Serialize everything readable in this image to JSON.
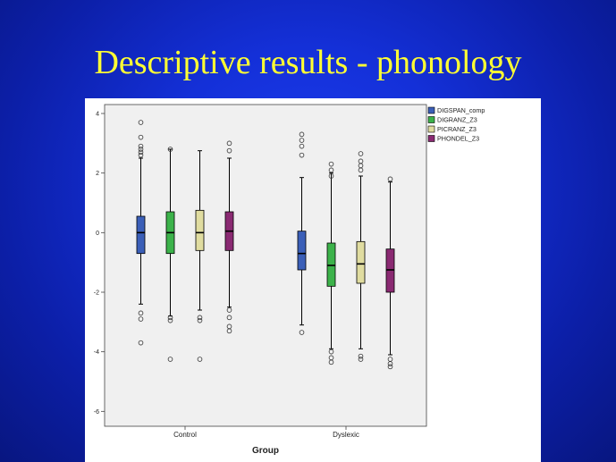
{
  "slide": {
    "title": "Descriptive results - phonology"
  },
  "chart_data": {
    "type": "boxplot",
    "title": "",
    "xlabel": "Group",
    "ylabel": "",
    "categories": [
      "Control",
      "Dyslexic"
    ],
    "ylim": [
      -6.5,
      4.3
    ],
    "yticks": [
      -6,
      -4,
      -2,
      0,
      2,
      4
    ],
    "grid": false,
    "legend_position": "top-right",
    "series": [
      {
        "name": "DIGSPAN_comp",
        "color": "#3b5fb8",
        "boxes": [
          {
            "whisker_low": -2.4,
            "q1": -0.7,
            "median": 0.0,
            "q3": 0.55,
            "whisker_high": 2.5,
            "outliers": [
              3.7,
              3.2,
              2.9,
              2.8,
              2.7,
              2.6,
              -2.7,
              -2.9,
              -3.7
            ]
          },
          {
            "whisker_low": -3.1,
            "q1": -1.25,
            "median": -0.7,
            "q3": 0.05,
            "whisker_high": 1.85,
            "outliers": [
              3.3,
              3.1,
              2.9,
              2.6,
              -3.35
            ]
          }
        ]
      },
      {
        "name": "DIGRANZ_Z3",
        "color": "#3cb24a",
        "boxes": [
          {
            "whisker_low": -2.8,
            "q1": -0.7,
            "median": 0.0,
            "q3": 0.7,
            "whisker_high": 2.8,
            "outliers": [
              2.8,
              -2.85,
              -2.95,
              -4.25
            ]
          },
          {
            "whisker_low": -3.9,
            "q1": -1.8,
            "median": -1.1,
            "q3": -0.35,
            "whisker_high": 2.0,
            "outliers": [
              2.3,
              2.1,
              1.9,
              -4.0,
              -4.2,
              -4.35
            ]
          }
        ]
      },
      {
        "name": "PICRANZ_Z3",
        "color": "#e0dca0",
        "boxes": [
          {
            "whisker_low": -2.6,
            "q1": -0.6,
            "median": 0.0,
            "q3": 0.75,
            "whisker_high": 2.75,
            "outliers": [
              -2.85,
              -2.95,
              -4.25
            ]
          },
          {
            "whisker_low": -3.9,
            "q1": -1.7,
            "median": -1.05,
            "q3": -0.3,
            "whisker_high": 1.9,
            "outliers": [
              2.65,
              2.4,
              2.25,
              2.1,
              -4.15,
              -4.25
            ]
          }
        ]
      },
      {
        "name": "PHONDEL_Z3",
        "color": "#8a2a72",
        "boxes": [
          {
            "whisker_low": -2.5,
            "q1": -0.6,
            "median": 0.05,
            "q3": 0.7,
            "whisker_high": 2.5,
            "outliers": [
              3.0,
              2.75,
              -2.6,
              -2.85,
              -3.15,
              -3.3
            ]
          },
          {
            "whisker_low": -4.1,
            "q1": -2.0,
            "median": -1.25,
            "q3": -0.55,
            "whisker_high": 1.7,
            "outliers": [
              1.8,
              -4.25,
              -4.4,
              -4.5
            ]
          }
        ]
      }
    ]
  }
}
